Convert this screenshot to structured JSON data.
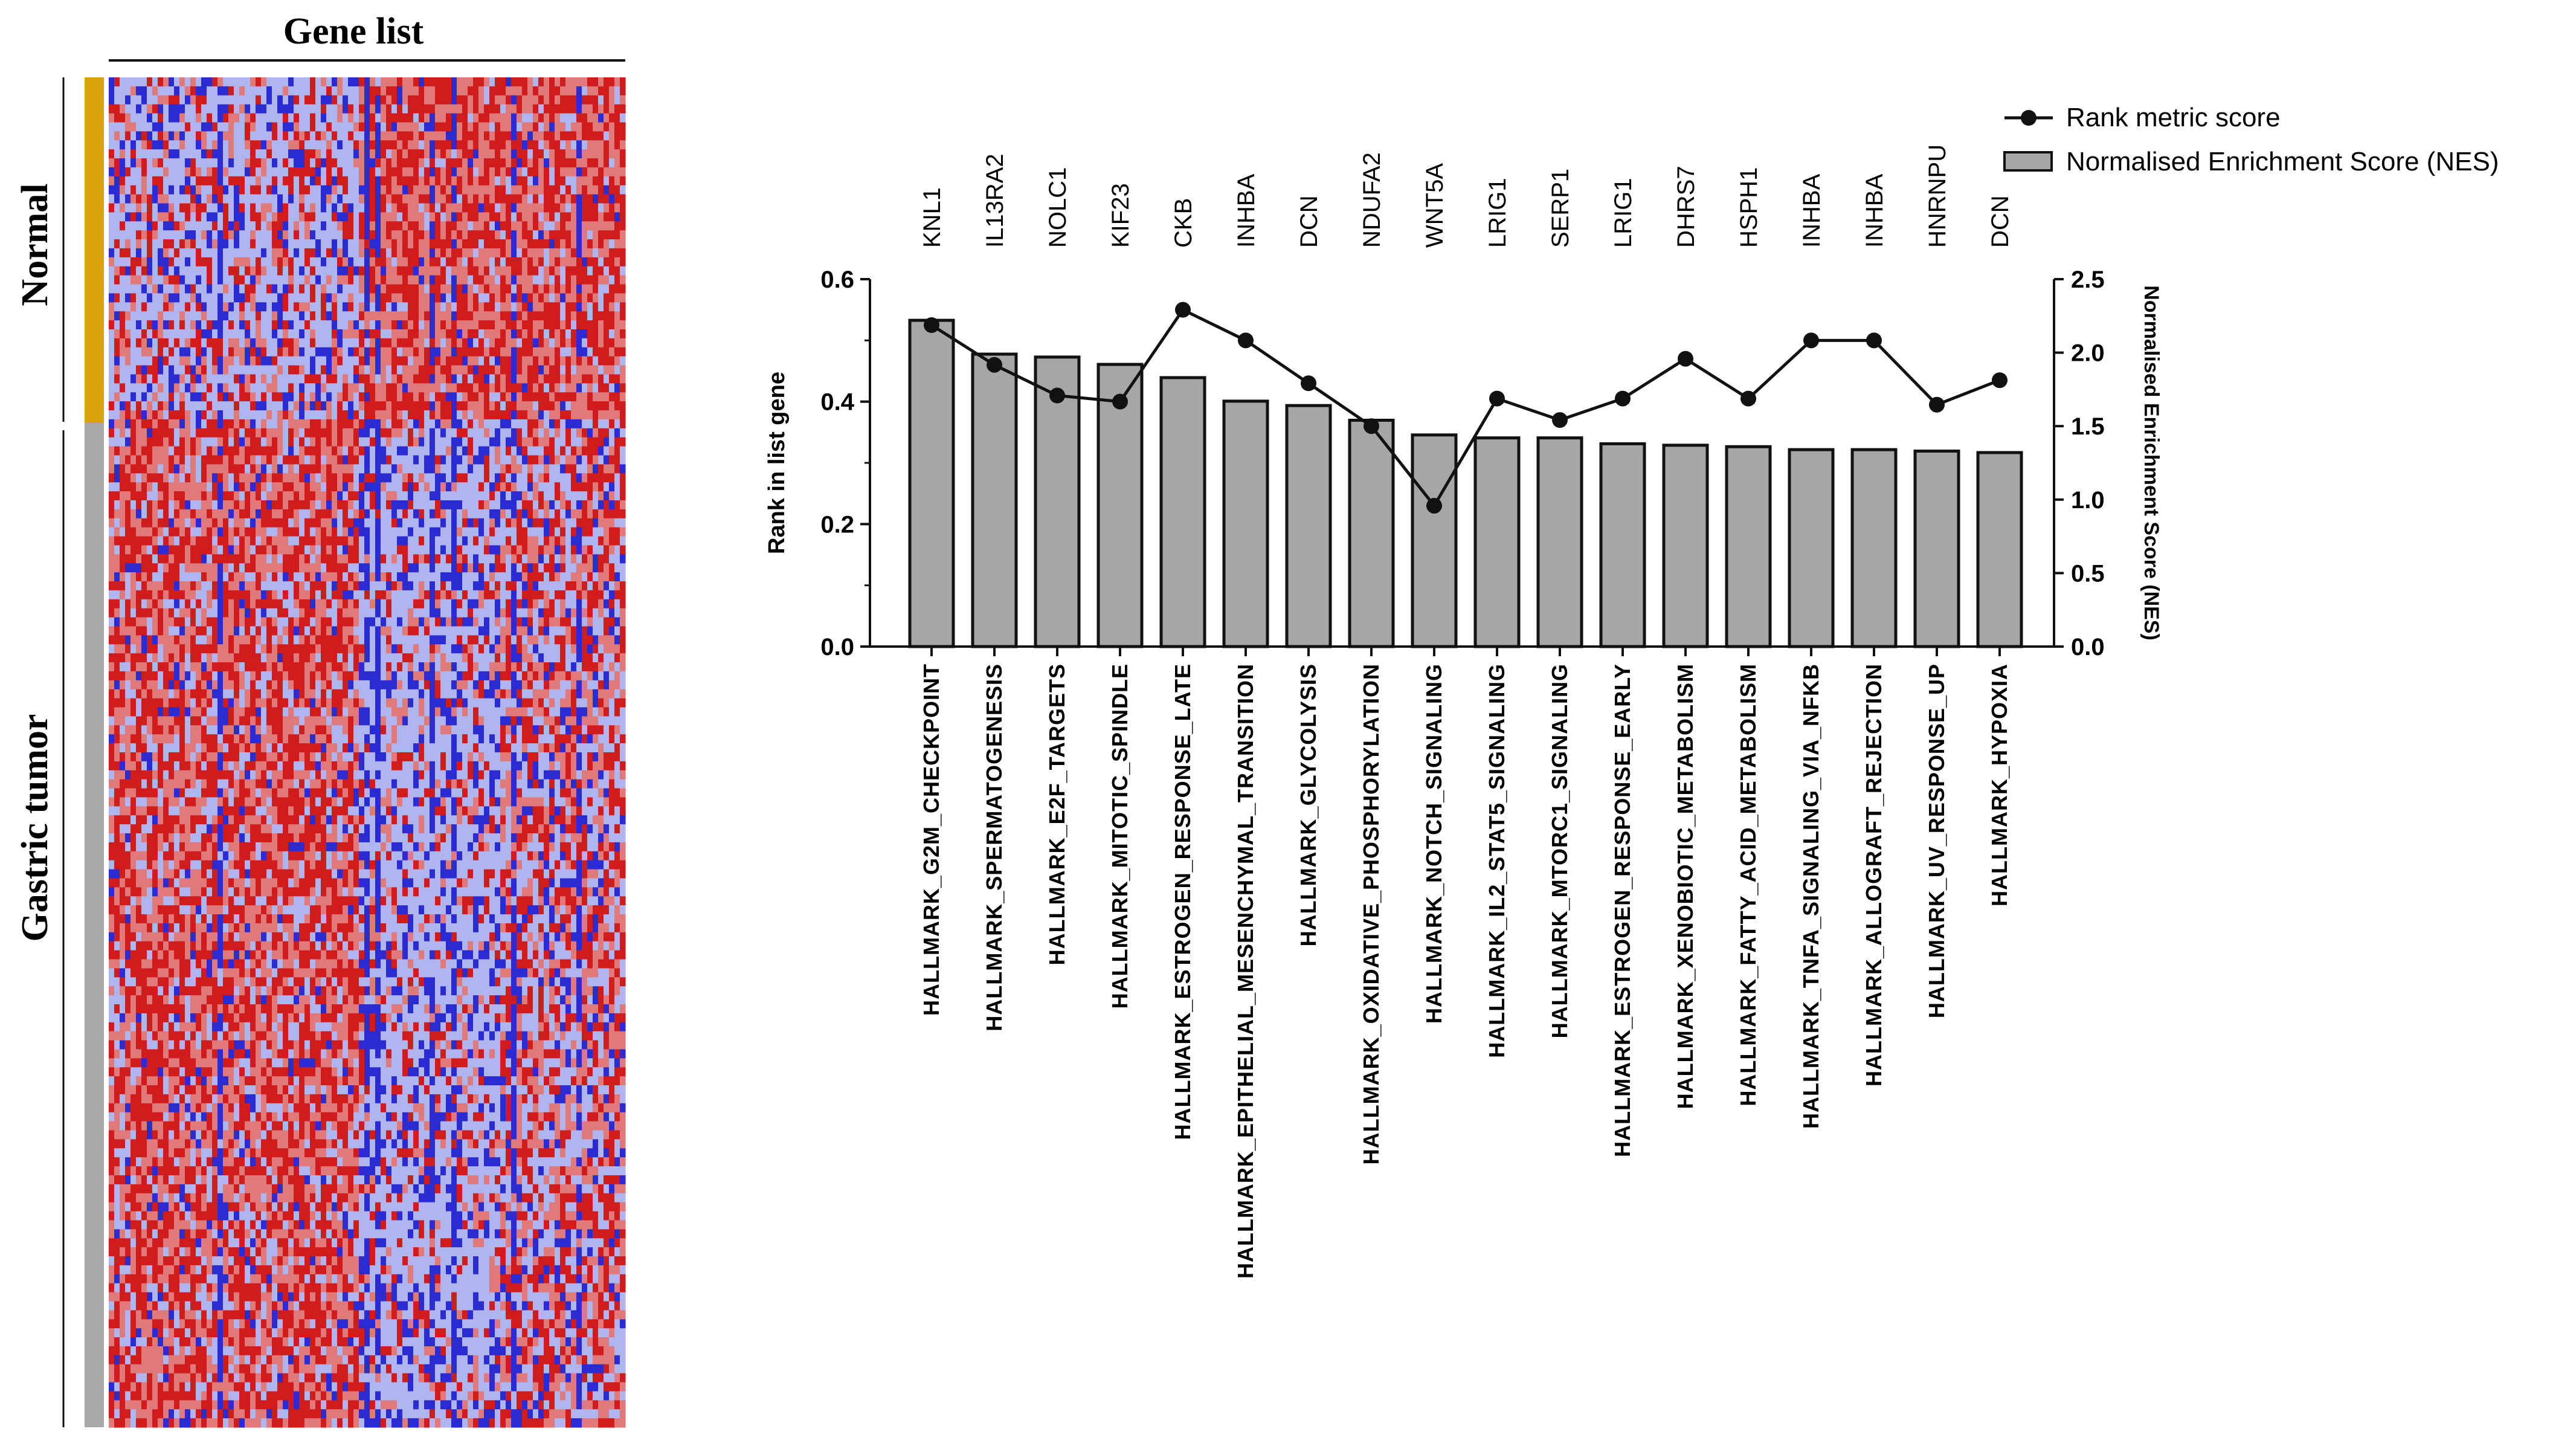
{
  "heatmap": {
    "title": "Gene list",
    "groups": [
      {
        "label": "Normal",
        "color": "#D9A20B",
        "fraction": 0.255
      },
      {
        "label": "Gastric tumor",
        "color": "#A9A9A9",
        "fraction": 0.745
      }
    ],
    "colors": {
      "high": "#D01C1C",
      "low": "#2B2BD4",
      "mid": "#AFB5EE"
    }
  },
  "chart_data": {
    "type": "bar+line",
    "categories": [
      "HALLMARK_G2M_CHECKPOINT",
      "HALLMARK_SPERMATOGENESIS",
      "HALLMARK_E2F_TARGETS",
      "HALLMARK_MITOTIC_SPINDLE",
      "HALLMARK_ESTROGEN_RESPONSE_LATE",
      "HALLMARK_EPITHELIAL_MESENCHYMAL_TRANSITION",
      "HALLMARK_GLYCOLYSIS",
      "HALLMARK_OXIDATIVE_PHOSPHORYLATION",
      "HALLMARK_NOTCH_SIGNALING",
      "HALLMARK_IL2_STAT5_SIGNALING",
      "HALLMARK_MTORC1_SIGNALING",
      "HALLMARK_ESTROGEN_RESPONSE_EARLY",
      "HALLMARK_XENOBIOTIC_METABOLISM",
      "HALLMARK_FATTY_ACID_METABOLISM",
      "HALLMARK_TNFA_SIGNALING_VIA_NFKB",
      "HALLMARK_ALLOGRAFT_REJECTION",
      "HALLMARK_UV_RESPONSE_UP",
      "HALLMARK_HYPOXIA"
    ],
    "genes": [
      "KNL1",
      "IL13RA2",
      "NOLC1",
      "KIF23",
      "CKB",
      "INHBA",
      "DCN",
      "NDUFA2",
      "WNT5A",
      "LRIG1",
      "SERP1",
      "LRIG1",
      "DHRS7",
      "HSPH1",
      "INHBA",
      "INHBA",
      "HNRNPU",
      "DCN"
    ],
    "series": [
      {
        "name": "Normalised Enrichment Score  (NES)",
        "type": "bar",
        "axis": "right",
        "values": [
          2.22,
          1.99,
          1.97,
          1.92,
          1.83,
          1.67,
          1.64,
          1.54,
          1.44,
          1.42,
          1.42,
          1.38,
          1.37,
          1.36,
          1.34,
          1.34,
          1.33,
          1.32
        ],
        "color": "#A6A6A6"
      },
      {
        "name": "Rank metric score",
        "type": "line",
        "axis": "left",
        "values": [
          0.525,
          0.46,
          0.41,
          0.4,
          0.55,
          0.5,
          0.43,
          0.36,
          0.23,
          0.405,
          0.37,
          0.405,
          0.47,
          0.405,
          0.5,
          0.5,
          0.395,
          0.435
        ],
        "color": "#111111"
      }
    ],
    "left_axis": {
      "label": "Rank in list gene",
      "ylim": [
        0,
        0.6
      ],
      "ticks": [
        0.0,
        0.2,
        0.4,
        0.6
      ],
      "tick_labels": [
        "0.0",
        "0.2",
        "0.4",
        "0.6"
      ]
    },
    "right_axis": {
      "label": "Normalised Enrichment Score  (NES)",
      "ylim": [
        0,
        2.5
      ],
      "ticks": [
        0.0,
        0.5,
        1.0,
        1.5,
        2.0,
        2.5
      ],
      "tick_labels": [
        "0.0",
        "0.5",
        "1.0",
        "1.5",
        "2.0",
        "2.5"
      ]
    },
    "legend": [
      {
        "label": "Rank metric score",
        "kind": "line"
      },
      {
        "label": "Normalised Enrichment Score  (NES)",
        "kind": "bar"
      }
    ],
    "legend_position": "top-right",
    "grid": false
  }
}
